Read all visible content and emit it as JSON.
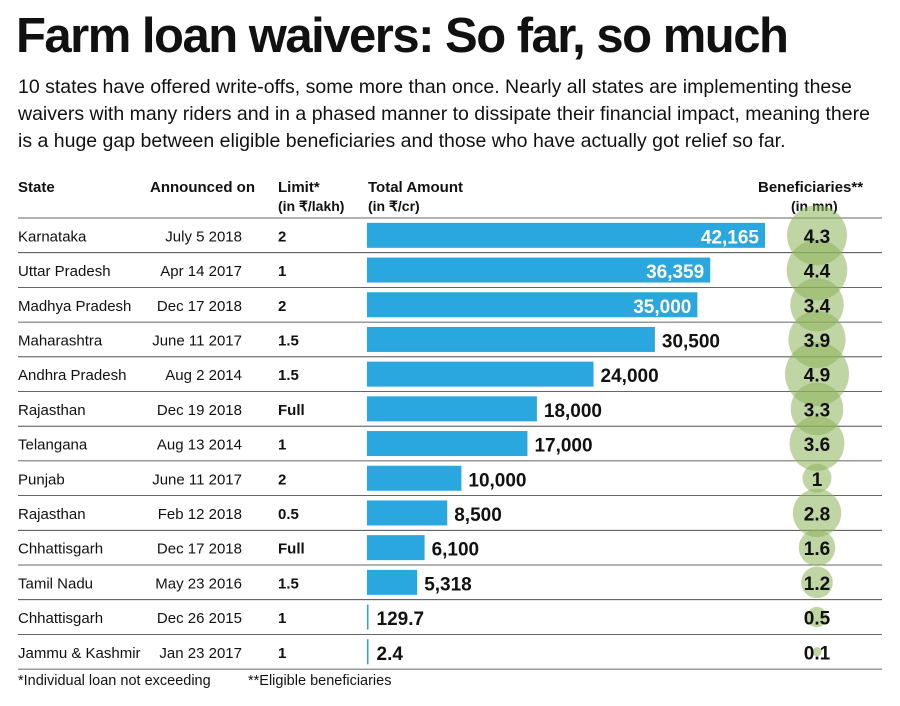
{
  "title": "Farm loan waivers: So far, so much",
  "subtitle": "10 states have offered write-offs, some more than once. Nearly all states are implementing these waivers with many riders and in a phased manner to dissipate their financial impact, meaning there is a huge gap between eligible beneficiaries and those who have actually got relief so far.",
  "headers": {
    "state": "State",
    "announced": "Announced on",
    "limit": "Limit*",
    "limit_unit": "(in ₹/lakh)",
    "amount": "Total Amount",
    "amount_unit": "(in ₹/cr)",
    "beneficiaries": "Beneficiaries**",
    "beneficiaries_unit": "(in mn)"
  },
  "footnotes": {
    "limit_note": "*Individual loan not exceeding",
    "beneficiaries_note": "**Eligible beneficiaries"
  },
  "colors": {
    "bar": "#2aa7de",
    "circle": "#8cb35a",
    "row_rule": "#333333"
  },
  "chart_data": {
    "type": "bar",
    "orientation": "horizontal",
    "categories": [
      "Karnataka",
      "Uttar Pradesh",
      "Madhya Pradesh",
      "Maharashtra",
      "Andhra Pradesh",
      "Rajasthan",
      "Telangana",
      "Punjab",
      "Rajasthan",
      "Chhattisgarh",
      "Tamil Nadu",
      "Chhattisgarh",
      "Jammu & Kashmir"
    ],
    "announced_on": [
      "July 5 2018",
      "Apr 14 2017",
      "Dec 17 2018",
      "June 11 2017",
      "Aug 2 2014",
      "Dec 19 2018",
      "Aug 13 2014",
      "June 11 2017",
      "Feb 12 2018",
      "Dec 17 2018",
      "May 23 2016",
      "Dec 26 2015",
      "Jan 23 2017"
    ],
    "limit": [
      "2",
      "1",
      "2",
      "1.5",
      "1.5",
      "Full",
      "1",
      "2",
      "0.5",
      "Full",
      "1.5",
      "1",
      "1"
    ],
    "values": [
      42165,
      36359,
      35000,
      30500,
      24000,
      18000,
      17000,
      10000,
      8500,
      6100,
      5318,
      129.7,
      2.4
    ],
    "value_labels": [
      "42,165",
      "36,359",
      "35,000",
      "30,500",
      "24,000",
      "18,000",
      "17,000",
      "10,000",
      "8,500",
      "6,100",
      "5,318",
      "129.7",
      "2.4"
    ],
    "beneficiaries": [
      4.3,
      4.4,
      3.4,
      3.9,
      4.9,
      3.3,
      3.6,
      1,
      2.8,
      1.6,
      1.2,
      0.5,
      0.1
    ],
    "beneficiary_labels": [
      "4.3",
      "4.4",
      "3.4",
      "3.9",
      "4.9",
      "3.3",
      "3.6",
      "1",
      "2.8",
      "1.6",
      "1.2",
      "0.5",
      "0.1"
    ],
    "xlim": [
      0,
      42165
    ],
    "grid": false,
    "legend": "none"
  }
}
